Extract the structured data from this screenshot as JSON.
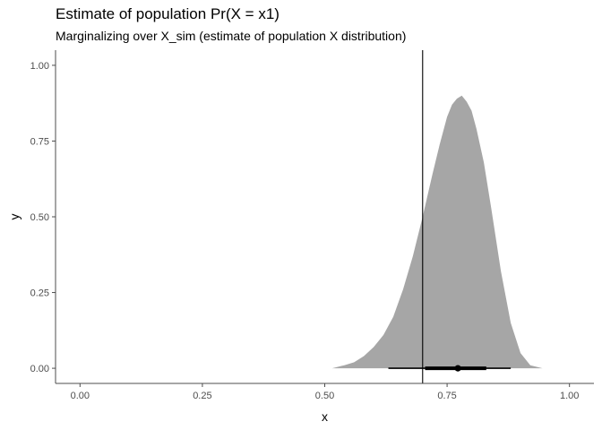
{
  "chart_data": {
    "type": "area",
    "title": "Estimate of population Pr(X = x1)",
    "subtitle": "Marginalizing over X_sim (estimate of population X distribution)",
    "xlabel": "x",
    "ylabel": "y",
    "xlim": [
      -0.05,
      1.05
    ],
    "ylim": [
      -0.05,
      1.05
    ],
    "x_ticks": [
      "0.00",
      "0.25",
      "0.50",
      "0.75",
      "1.00"
    ],
    "y_ticks": [
      "0.00",
      "0.25",
      "0.50",
      "0.75",
      "1.00"
    ],
    "grid": false,
    "fill_color": "#a6a6a6",
    "density": {
      "x": [
        0.515,
        0.54,
        0.56,
        0.58,
        0.6,
        0.62,
        0.64,
        0.66,
        0.68,
        0.7,
        0.72,
        0.735,
        0.75,
        0.76,
        0.77,
        0.78,
        0.79,
        0.8,
        0.81,
        0.825,
        0.84,
        0.86,
        0.88,
        0.9,
        0.92,
        0.945
      ],
      "y": [
        0.0,
        0.01,
        0.02,
        0.04,
        0.07,
        0.11,
        0.17,
        0.26,
        0.37,
        0.5,
        0.64,
        0.74,
        0.83,
        0.87,
        0.89,
        0.9,
        0.88,
        0.85,
        0.79,
        0.68,
        0.53,
        0.32,
        0.15,
        0.05,
        0.01,
        0.0
      ]
    },
    "reference_line_x": 0.7,
    "interval": {
      "point": 0.772,
      "inner": [
        0.705,
        0.83
      ],
      "outer": [
        0.63,
        0.88
      ]
    }
  }
}
